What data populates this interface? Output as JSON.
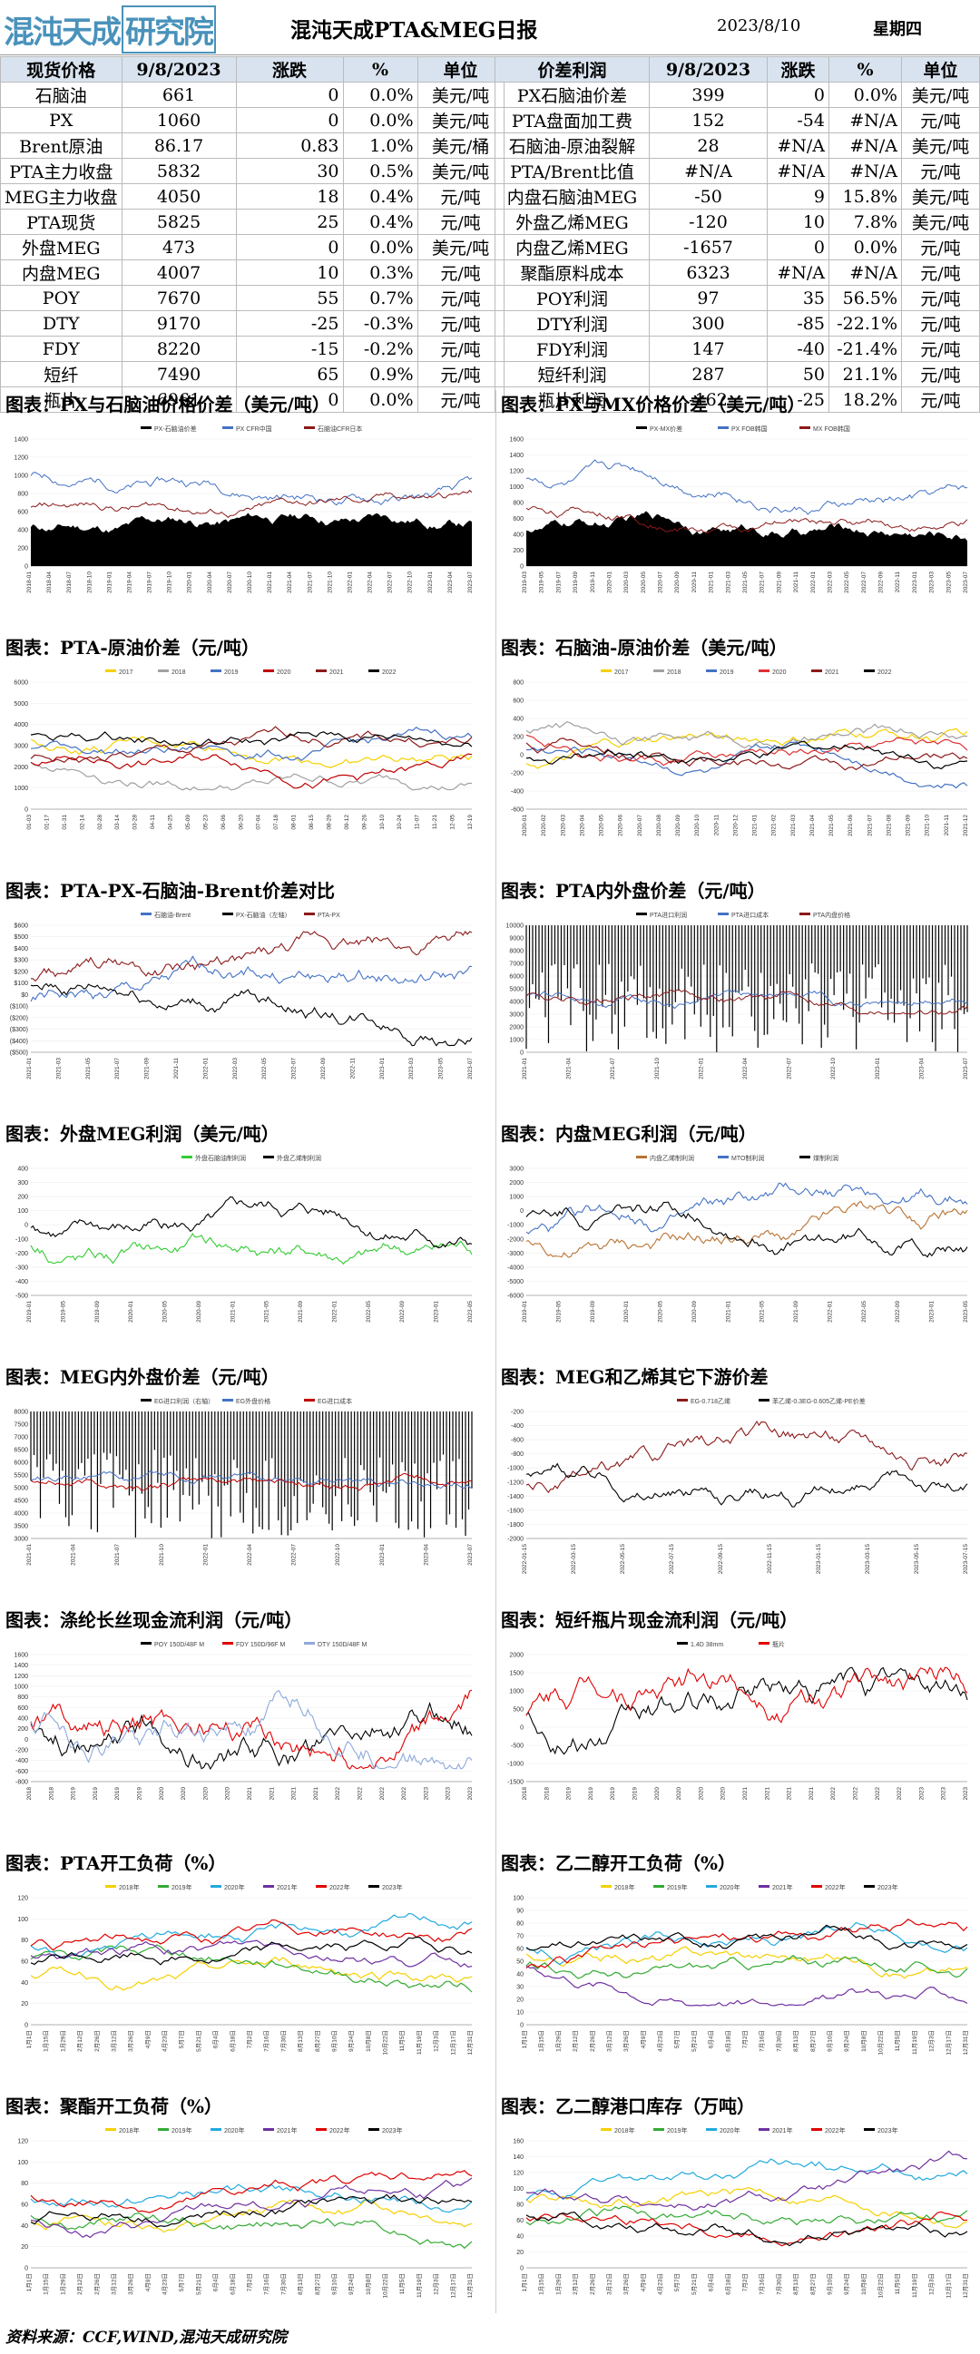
{
  "header": {
    "logo": "混沌天成",
    "logo_box": "研究院",
    "title": "混沌天成PTA&MEG日报",
    "date": "2023/8/10",
    "weekday": "星期四"
  },
  "left_table": {
    "headers": [
      "现货价格",
      "9/8/2023",
      "涨跌",
      "%",
      "单位"
    ],
    "rows": [
      [
        "石脑油",
        "661",
        "0",
        "0.0%",
        "美元/吨"
      ],
      [
        "PX",
        "1060",
        "0",
        "0.0%",
        "美元/吨"
      ],
      [
        "Brent原油",
        "86.17",
        "0.83",
        "1.0%",
        "美元/桶"
      ],
      [
        "PTA主力收盘",
        "5832",
        "30",
        "0.5%",
        "美元/吨"
      ],
      [
        "MEG主力收盘",
        "4050",
        "18",
        "0.4%",
        "元/吨"
      ],
      [
        "PTA现货",
        "5825",
        "25",
        "0.4%",
        "元/吨"
      ],
      [
        "外盘MEG",
        "473",
        "0",
        "0.0%",
        "美元/吨"
      ],
      [
        "内盘MEG",
        "4007",
        "10",
        "0.3%",
        "元/吨"
      ],
      [
        "POY",
        "7670",
        "55",
        "0.7%",
        "元/吨"
      ],
      [
        "DTY",
        "9170",
        "-25",
        "-0.3%",
        "元/吨"
      ],
      [
        "FDY",
        "8220",
        "-15",
        "-0.2%",
        "元/吨"
      ],
      [
        "短纤",
        "7490",
        "65",
        "0.9%",
        "元/吨"
      ],
      [
        "瓶片",
        "6961",
        "0",
        "0.0%",
        "元/吨"
      ]
    ]
  },
  "right_table": {
    "headers": [
      "价差利润",
      "9/8/2023",
      "涨跌",
      "%",
      "单位"
    ],
    "rows": [
      [
        "PX石脑油价差",
        "399",
        "0",
        "0.0%",
        "美元/吨"
      ],
      [
        "PTA盘面加工费",
        "152",
        "-54",
        "#N/A",
        "元/吨"
      ],
      [
        "石脑油-原油裂解",
        "28",
        "#N/A",
        "#N/A",
        "美元/吨"
      ],
      [
        "PTA/Brent比值",
        "#N/A",
        "#N/A",
        "#N/A",
        "元/吨"
      ],
      [
        "内盘石脑油MEG",
        "-50",
        "9",
        "15.8%",
        "美元/吨"
      ],
      [
        "外盘乙烯MEG",
        "-120",
        "10",
        "7.8%",
        "美元/吨"
      ],
      [
        "内盘乙烯MEG",
        "-1657",
        "0",
        "0.0%",
        "元/吨"
      ],
      [
        "聚酯原料成本",
        "6323",
        "#N/A",
        "#N/A",
        "元/吨"
      ],
      [
        "POY利润",
        "97",
        "35",
        "56.5%",
        "元/吨"
      ],
      [
        "DTY利润",
        "300",
        "-85",
        "-22.1%",
        "元/吨"
      ],
      [
        "FDY利润",
        "147",
        "-40",
        "-21.4%",
        "元/吨"
      ],
      [
        "短纤利润",
        "287",
        "50",
        "21.1%",
        "元/吨"
      ],
      [
        "瓶片利润",
        "-162",
        "-25",
        "18.2%",
        "元/吨"
      ]
    ]
  },
  "panels": [
    {
      "title": "图表：PX与石脑油价格价差（美元/吨）",
      "legend": [
        "PX-石脑油价差",
        "PX CFR中国",
        "石脑油CFR日本"
      ],
      "colors": [
        "#000000",
        "#4472c4",
        "#8b1a1a"
      ],
      "kind": "band",
      "yticks": [
        "1400",
        "1200",
        "1000",
        "800",
        "600",
        "400",
        "200",
        "0"
      ],
      "xticks": [
        "2018-01",
        "2018-04",
        "2018-07",
        "2018-10",
        "2019-01",
        "2019-04",
        "2019-07",
        "2019-10",
        "2020-01",
        "2020-04",
        "2020-07",
        "2020-10",
        "2021-01",
        "2021-04",
        "2021-07",
        "2021-10",
        "2022-01",
        "2022-04",
        "2022-07",
        "2022-10",
        "2023-01",
        "2023-04",
        "2023-07"
      ]
    },
    {
      "title": "图表：PX与MX价格价差（美元/吨）",
      "legend": [
        "PX-MX价差",
        "PX FOB韩国",
        "MX FOB韩国"
      ],
      "colors": [
        "#000000",
        "#4472c4",
        "#8b1a1a"
      ],
      "kind": "band",
      "yticks": [
        "1600",
        "1400",
        "1200",
        "1000",
        "800",
        "600",
        "400",
        "200",
        "0"
      ],
      "xticks": [
        "2019-03",
        "2019-05",
        "2019-07",
        "2019-09",
        "2019-11",
        "2020-01",
        "2020-03",
        "2020-05",
        "2020-07",
        "2020-09",
        "2020-11",
        "2021-01",
        "2021-03",
        "2021-05",
        "2021-07",
        "2021-09",
        "2021-11",
        "2022-01",
        "2022-03",
        "2022-05",
        "2022-07",
        "2022-09",
        "2022-11",
        "2023-01",
        "2023-03",
        "2023-05",
        "2023-07"
      ]
    },
    {
      "title": "图表：PTA-原油价差（元/吨）",
      "legend": [
        "2017",
        "2018",
        "2019",
        "2020",
        "2021",
        "2022"
      ],
      "colors": [
        "#f5d000",
        "#a0a0a0",
        "#4472c4",
        "#c00000",
        "#8b1a1a",
        "#000000"
      ],
      "kind": "seasonal",
      "yticks": [
        "6000",
        "5000",
        "4000",
        "3000",
        "2000",
        "1000",
        "0"
      ],
      "xticks": [
        "01-03",
        "01-17",
        "01-31",
        "02-14",
        "02-28",
        "03-14",
        "03-28",
        "04-11",
        "04-25",
        "05-09",
        "05-23",
        "06-06",
        "06-20",
        "07-04",
        "07-18",
        "08-01",
        "08-15",
        "08-29",
        "09-12",
        "09-26",
        "10-10",
        "10-24",
        "11-07",
        "11-21",
        "12-05",
        "12-19"
      ]
    },
    {
      "title": "图表：石脑油-原油价差（美元/吨）",
      "legend": [
        "2017",
        "2018",
        "2019",
        "2020",
        "2021",
        "2022"
      ],
      "colors": [
        "#f5d000",
        "#a0a0a0",
        "#4472c4",
        "#e03030",
        "#8b1a1a",
        "#000000"
      ],
      "kind": "seasonal",
      "yticks": [
        "800",
        "600",
        "400",
        "200",
        "0",
        "-200",
        "-400",
        "-600"
      ],
      "xticks": [
        "2020-01",
        "2020-02",
        "2020-03",
        "2020-04",
        "2020-05",
        "2020-06",
        "2020-07",
        "2020-08",
        "2020-09",
        "2020-10",
        "2020-11",
        "2020-12",
        "2021-01",
        "2021-02",
        "2021-03",
        "2021-04",
        "2021-05",
        "2021-06",
        "2021-07",
        "2021-08",
        "2021-09",
        "2021-10",
        "2021-11",
        "2021-12"
      ]
    },
    {
      "title": "图表：PTA-PX-石脑油-Brent价差对比",
      "legend": [
        "石脑油-Brent",
        "PX-石脑油（左轴）",
        "PTA-PX"
      ],
      "colors": [
        "#4472c4",
        "#000000",
        "#8b1a1a"
      ],
      "kind": "dual",
      "yticks": [
        "$600",
        "$500",
        "$400",
        "$300",
        "$200",
        "$100",
        "$0",
        "($100)",
        "($200)",
        "($300)",
        "($400)",
        "($500)"
      ],
      "xticks": [
        "2021-01",
        "2021-03",
        "2021-05",
        "2021-07",
        "2021-09",
        "2021-11",
        "2022-01",
        "2022-03",
        "2022-05",
        "2022-07",
        "2022-09",
        "2022-11",
        "2023-01",
        "2023-03",
        "2023-05",
        "2023-07"
      ]
    },
    {
      "title": "图表：PTA内外盘价差（元/吨）",
      "legend": [
        "PTA进口利润",
        "PTA进口成本",
        "PTA内盘价格"
      ],
      "colors": [
        "#000000",
        "#4472c4",
        "#8b1a1a"
      ],
      "kind": "bars",
      "yticks": [
        "10000",
        "9000",
        "8000",
        "7000",
        "6000",
        "5000",
        "4000",
        "3000",
        "2000",
        "1000",
        "0"
      ],
      "xticks": [
        "2021-01",
        "2021-04",
        "2021-07",
        "2021-10",
        "2022-01",
        "2022-04",
        "2022-07",
        "2022-10",
        "2023-01",
        "2023-04",
        "2023-07"
      ]
    },
    {
      "title": "图表：外盘MEG利润（美元/吨）",
      "legend": [
        "外盘石脑油制利润",
        "外盘乙烯制利润"
      ],
      "colors": [
        "#33cc33",
        "#000000"
      ],
      "kind": "dual",
      "yticks": [
        "400",
        "300",
        "200",
        "100",
        "0",
        "-100",
        "-200",
        "-300",
        "-400",
        "-500"
      ],
      "xticks": [
        "2019-01",
        "2019-05",
        "2019-09",
        "2020-01",
        "2020-05",
        "2020-09",
        "2021-01",
        "2021-05",
        "2021-09",
        "2022-01",
        "2022-05",
        "2022-09",
        "2023-01",
        "2023-05"
      ]
    },
    {
      "title": "图表：内盘MEG利润（元/吨）",
      "legend": [
        "内盘乙烯制利润",
        "MTO制利润",
        "煤制利润"
      ],
      "colors": [
        "#b87333",
        "#4472c4",
        "#000000"
      ],
      "kind": "dual",
      "yticks": [
        "3000",
        "2000",
        "1000",
        "0",
        "-1000",
        "-2000",
        "-3000",
        "-4000",
        "-5000",
        "-6000"
      ],
      "xticks": [
        "2019-01",
        "2019-05",
        "2019-09",
        "2020-01",
        "2020-05",
        "2020-09",
        "2021-01",
        "2021-05",
        "2021-09",
        "2022-01",
        "2022-05",
        "2022-09",
        "2023-01",
        "2023-05"
      ]
    },
    {
      "title": "图表：MEG内外盘价差（元/吨）",
      "legend": [
        "EG进口利润（右轴）",
        "EG外盘价格",
        "EG进口成本"
      ],
      "colors": [
        "#000000",
        "#4472c4",
        "#c00000"
      ],
      "kind": "bars",
      "yticks": [
        "8000",
        "7500",
        "7000",
        "6500",
        "6000",
        "5500",
        "5000",
        "4500",
        "4000",
        "3500",
        "3000"
      ],
      "xticks": [
        "2021-01",
        "2021-04",
        "2021-07",
        "2021-10",
        "2022-01",
        "2022-04",
        "2022-07",
        "2022-10",
        "2023-01",
        "2023-04",
        "2023-07"
      ]
    },
    {
      "title": "图表：MEG和乙烯其它下游价差",
      "legend": [
        "EG-0.718乙烯",
        "苯乙烯-0.3EG-0.605乙烯-PE价差"
      ],
      "colors": [
        "#8b1a1a",
        "#000000"
      ],
      "kind": "dual",
      "yticks": [
        "-200",
        "-400",
        "-600",
        "-800",
        "-1000",
        "-1200",
        "-1400",
        "-1600",
        "-1800",
        "-2000"
      ],
      "xticks": [
        "2022-01-15",
        "2022-03-15",
        "2022-05-15",
        "2022-07-15",
        "2022-09-15",
        "2022-11-15",
        "2023-01-15",
        "2023-03-15",
        "2023-05-15",
        "2023-07-15"
      ]
    },
    {
      "title": "图表：涤纶长丝现金流利润（元/吨）",
      "legend": [
        "POY 150D/48F M",
        "FDY 150D/96F M",
        "DTY 150D/48F M"
      ],
      "colors": [
        "#000000",
        "#e00000",
        "#8ea9db"
      ],
      "kind": "noisy",
      "yticks": [
        "1600",
        "1400",
        "1200",
        "1000",
        "800",
        "600",
        "400",
        "200",
        "0",
        "-200",
        "-400",
        "-600",
        "-800"
      ],
      "xticks": [
        "2018",
        "2018",
        "2019",
        "2019",
        "2019",
        "2019",
        "2020",
        "2020",
        "2020",
        "2020",
        "2021",
        "2021",
        "2021",
        "2021",
        "2022",
        "2022",
        "2022",
        "2022",
        "2023",
        "2023",
        "2023"
      ]
    },
    {
      "title": "图表：短纤瓶片现金流利润（元/吨）",
      "legend": [
        "1.4D 38mm",
        "瓶片"
      ],
      "colors": [
        "#000000",
        "#e00000"
      ],
      "kind": "noisy",
      "yticks": [
        "2000",
        "1500",
        "1000",
        "500",
        "0",
        "-500",
        "-1000",
        "-1500"
      ],
      "xticks": [
        "2018",
        "2018",
        "2019",
        "2019",
        "2019",
        "2019",
        "2020",
        "2020",
        "2020",
        "2020",
        "2021",
        "2021",
        "2021",
        "2021",
        "2022",
        "2022",
        "2022",
        "2022",
        "2023",
        "2023",
        "2023"
      ]
    },
    {
      "title": "图表：PTA开工负荷（%）",
      "legend": [
        "2018年",
        "2019年",
        "2020年",
        "2021年",
        "2022年",
        "2023年"
      ],
      "colors": [
        "#f5d000",
        "#33aa33",
        "#22aadd",
        "#7030a0",
        "#e00000",
        "#000000"
      ],
      "kind": "seasonal",
      "yticks": [
        "120",
        "100",
        "80",
        "60",
        "40",
        "20",
        "0"
      ],
      "xticks": [
        "1月1日",
        "1月15日",
        "1月29日",
        "2月12日",
        "2月26日",
        "3月12日",
        "3月26日",
        "4月9日",
        "4月23日",
        "5月7日",
        "5月21日",
        "6月4日",
        "6月18日",
        "7月2日",
        "7月16日",
        "7月30日",
        "8月13日",
        "8月27日",
        "9月10日",
        "9月24日",
        "10月8日",
        "10月22日",
        "11月5日",
        "11月19日",
        "12月3日",
        "12月17日",
        "12月31日"
      ]
    },
    {
      "title": "图表：乙二醇开工负荷（%）",
      "legend": [
        "2018年",
        "2019年",
        "2020年",
        "2021年",
        "2022年",
        "2023年"
      ],
      "colors": [
        "#f5d000",
        "#33aa33",
        "#22aadd",
        "#7030a0",
        "#e00000",
        "#000000"
      ],
      "kind": "seasonal",
      "yticks": [
        "100",
        "90",
        "80",
        "70",
        "60",
        "50",
        "40",
        "30",
        "20",
        "10",
        "0"
      ],
      "xticks": [
        "1月1日",
        "1月15日",
        "1月29日",
        "2月12日",
        "2月26日",
        "3月12日",
        "3月26日",
        "4月9日",
        "4月23日",
        "5月7日",
        "5月21日",
        "6月4日",
        "6月18日",
        "7月2日",
        "7月16日",
        "7月30日",
        "8月13日",
        "8月27日",
        "9月10日",
        "9月24日",
        "10月8日",
        "10月22日",
        "11月5日",
        "11月19日",
        "12月3日",
        "12月17日",
        "12月31日"
      ]
    },
    {
      "title": "图表：聚酯开工负荷（%）",
      "legend": [
        "2018年",
        "2019年",
        "2020年",
        "2021年",
        "2022年",
        "2023年"
      ],
      "colors": [
        "#f5d000",
        "#33aa33",
        "#22aadd",
        "#7030a0",
        "#e00000",
        "#000000"
      ],
      "kind": "seasonal",
      "yticks": [
        "120",
        "100",
        "80",
        "60",
        "40",
        "20",
        "0"
      ],
      "xticks": [
        "1月1日",
        "1月15日",
        "1月29日",
        "2月12日",
        "2月26日",
        "3月12日",
        "3月26日",
        "4月9日",
        "4月23日",
        "5月7日",
        "5月21日",
        "6月4日",
        "6月18日",
        "7月2日",
        "7月16日",
        "7月30日",
        "8月13日",
        "8月27日",
        "9月10日",
        "9月24日",
        "10月8日",
        "10月22日",
        "11月5日",
        "11月19日",
        "12月3日",
        "12月17日",
        "12月31日"
      ]
    },
    {
      "title": "图表：乙二醇港口库存（万吨）",
      "legend": [
        "2018年",
        "2019年",
        "2020年",
        "2021年",
        "2022年",
        "2023年"
      ],
      "colors": [
        "#f5d000",
        "#33aa33",
        "#22aadd",
        "#7030a0",
        "#e00000",
        "#000000"
      ],
      "kind": "seasonal",
      "yticks": [
        "160",
        "140",
        "120",
        "100",
        "80",
        "60",
        "40",
        "20",
        "0"
      ],
      "xticks": [
        "1月1日",
        "1月15日",
        "1月29日",
        "2月12日",
        "2月26日",
        "3月12日",
        "3月26日",
        "4月9日",
        "4月23日",
        "5月7日",
        "5月21日",
        "6月4日",
        "6月18日",
        "7月2日",
        "7月16日",
        "7月30日",
        "8月13日",
        "8月27日",
        "9月10日",
        "9月24日",
        "10月8日",
        "10月22日",
        "11月5日",
        "11月19日",
        "12月3日",
        "12月17日",
        "12月31日"
      ]
    }
  ],
  "footer": "资料来源：CCF,WIND,混沌天成研究院"
}
